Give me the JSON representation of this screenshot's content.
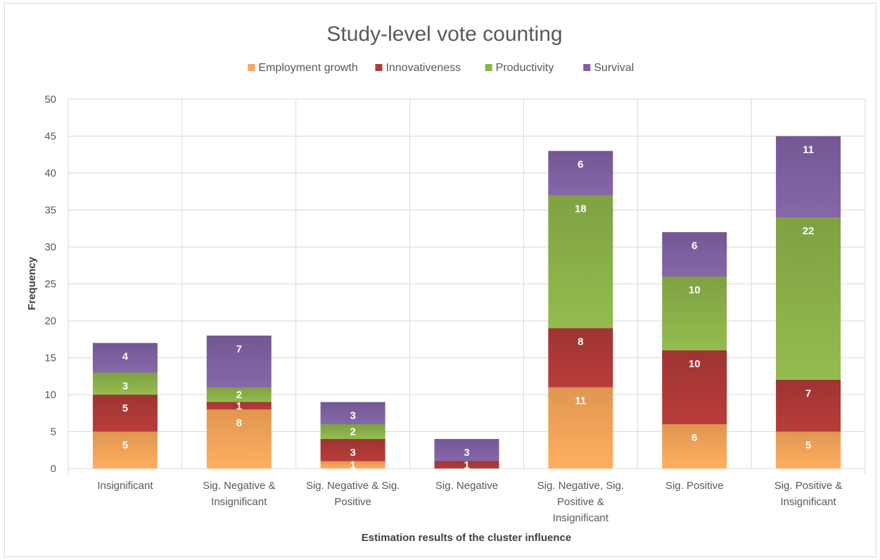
{
  "chart_data": {
    "type": "bar",
    "stacked": true,
    "title": "Study-level vote counting",
    "xlabel": "Estimation results of the cluster influence",
    "ylabel": "Frequency",
    "ylim": [
      0,
      50
    ],
    "yticks": [
      0,
      5,
      10,
      15,
      20,
      25,
      30,
      35,
      40,
      45,
      50
    ],
    "grid": true,
    "legend_position": "top",
    "categories": [
      [
        "Insignificant"
      ],
      [
        "Sig. Negative &",
        "Insignificant"
      ],
      [
        "Sig. Negative & Sig.",
        "Positive"
      ],
      [
        "Sig. Negative"
      ],
      [
        "Sig. Negative, Sig.",
        "Positive &",
        "Insignificant"
      ],
      [
        "Sig. Positive"
      ],
      [
        "Sig. Positive &",
        "Insignificant"
      ]
    ],
    "series": [
      {
        "name": "Employment growth",
        "color": "#f9a75a",
        "values": [
          5,
          8,
          1,
          0,
          11,
          6,
          5
        ],
        "labels": [
          "5",
          "8",
          "1",
          "",
          "11",
          "6",
          "5"
        ]
      },
      {
        "name": "Innovativeness",
        "color": "#b03a37",
        "values": [
          5,
          1,
          3,
          1,
          8,
          10,
          7
        ],
        "labels": [
          "5",
          "1",
          "3",
          "1",
          "8",
          "10",
          "7"
        ]
      },
      {
        "name": "Productivity",
        "color": "#8db34a",
        "values": [
          3,
          2,
          2,
          0,
          18,
          10,
          22
        ],
        "labels": [
          "3",
          "2",
          "2",
          "",
          "18",
          "10",
          "22"
        ]
      },
      {
        "name": "Survival",
        "color": "#8062a3",
        "values": [
          4,
          7,
          3,
          3,
          6,
          6,
          11
        ],
        "labels": [
          "4",
          "7",
          "3",
          "3",
          "6",
          "6",
          "11"
        ]
      }
    ]
  }
}
